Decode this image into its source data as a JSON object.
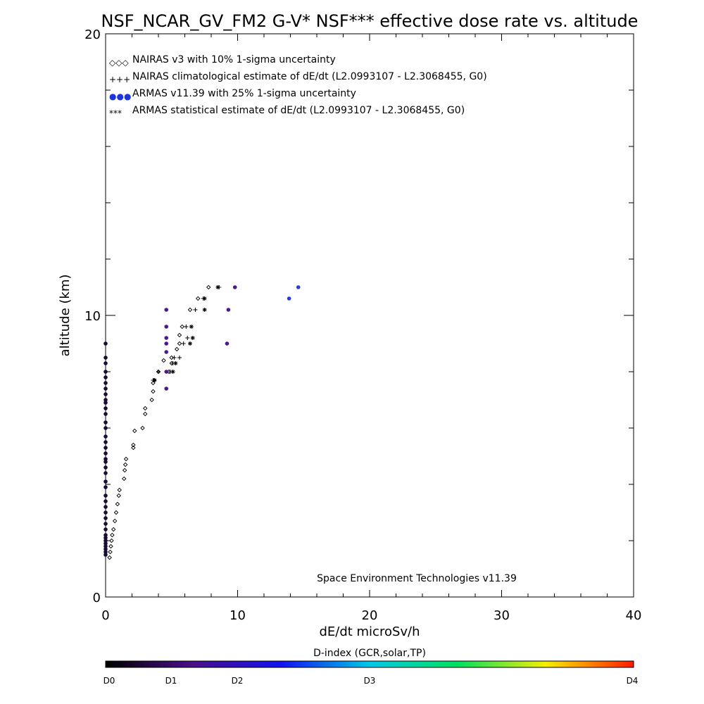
{
  "chart_data": {
    "type": "scatter",
    "title": "NSF_NCAR_GV_FM2 G-V* NSF*** effective dose rate vs. altitude",
    "xlabel": "dE/dt microSv/h",
    "ylabel": "altitude (km)",
    "xlim": [
      0,
      40
    ],
    "ylim": [
      0,
      20
    ],
    "x_ticks": [
      "0",
      "10",
      "20",
      "30",
      "40"
    ],
    "y_ticks": [
      "0",
      "10",
      "20"
    ],
    "grid": false,
    "legend_position": "top-left",
    "annotation": "Space Environment Technologies v11.39",
    "series": [
      {
        "name": "NAIRAS v3 with 10% 1-sigma uncertainty",
        "legend_symbol": "◇◇◇",
        "marker": "diamond",
        "points": [
          [
            0.3,
            1.4
          ],
          [
            0.35,
            1.6
          ],
          [
            0.4,
            1.8
          ],
          [
            0.45,
            2.0
          ],
          [
            0.5,
            2.2
          ],
          [
            0.6,
            2.4
          ],
          [
            0.7,
            2.7
          ],
          [
            0.8,
            3.0
          ],
          [
            0.9,
            3.3
          ],
          [
            1.0,
            3.6
          ],
          [
            1.05,
            3.8
          ],
          [
            1.4,
            4.2
          ],
          [
            1.45,
            4.5
          ],
          [
            1.5,
            4.7
          ],
          [
            1.55,
            4.9
          ],
          [
            2.1,
            5.3
          ],
          [
            2.1,
            5.4
          ],
          [
            2.2,
            5.9
          ],
          [
            2.8,
            6.0
          ],
          [
            3.0,
            6.5
          ],
          [
            3.0,
            6.7
          ],
          [
            3.5,
            7.0
          ],
          [
            3.6,
            7.3
          ],
          [
            3.6,
            7.6
          ],
          [
            3.7,
            7.7
          ],
          [
            4.0,
            8.0
          ],
          [
            4.4,
            8.4
          ],
          [
            4.8,
            8.0
          ],
          [
            5.0,
            8.3
          ],
          [
            5.0,
            8.5
          ],
          [
            5.4,
            8.8
          ],
          [
            5.6,
            9.0
          ],
          [
            5.6,
            9.3
          ],
          [
            5.8,
            9.6
          ],
          [
            6.4,
            10.2
          ],
          [
            7.0,
            10.6
          ],
          [
            7.8,
            11.0
          ]
        ]
      },
      {
        "name": "NAIRAS climatological estimate of dE/dt (L2.0993107 - L2.3068455, G0)",
        "legend_symbol": "+++",
        "marker": "plus",
        "points": [
          [
            3.6,
            7.7
          ],
          [
            4.0,
            8.0
          ],
          [
            4.9,
            8.0
          ],
          [
            5.1,
            8.3
          ],
          [
            5.2,
            8.5
          ],
          [
            5.6,
            8.5
          ],
          [
            5.9,
            9.0
          ],
          [
            6.2,
            9.2
          ],
          [
            6.4,
            9.0
          ],
          [
            6.1,
            9.6
          ],
          [
            6.8,
            10.2
          ],
          [
            7.4,
            10.6
          ],
          [
            8.6,
            11.0
          ]
        ]
      },
      {
        "name": "ARMAS v11.39 with 25% 1-sigma uncertainty",
        "legend_symbol": "●●●",
        "marker": "dot",
        "legend_color": "#1c34d8",
        "points": [
          [
            0,
            1.5
          ],
          [
            0,
            1.6
          ],
          [
            0,
            1.7
          ],
          [
            0,
            1.8
          ],
          [
            0,
            1.9
          ],
          [
            0,
            2.0
          ],
          [
            0,
            2.1
          ],
          [
            0,
            2.2
          ],
          [
            0,
            2.4
          ],
          [
            0,
            2.6
          ],
          [
            0,
            2.8
          ],
          [
            0,
            3.0
          ],
          [
            0,
            3.2
          ],
          [
            0,
            3.4
          ],
          [
            0,
            3.6
          ],
          [
            0,
            3.9
          ],
          [
            0,
            4.1
          ],
          [
            0,
            4.4
          ],
          [
            0,
            4.6
          ],
          [
            0,
            4.8
          ],
          [
            0,
            4.9
          ],
          [
            0,
            5.1
          ],
          [
            0,
            5.3
          ],
          [
            0,
            5.5
          ],
          [
            0,
            5.7
          ],
          [
            0,
            6.0
          ],
          [
            0,
            6.2
          ],
          [
            0,
            6.5
          ],
          [
            0,
            6.7
          ],
          [
            0,
            6.9
          ],
          [
            0,
            7.0
          ],
          [
            0,
            7.2
          ],
          [
            0,
            7.4
          ],
          [
            0,
            7.6
          ],
          [
            0,
            7.8
          ],
          [
            0,
            8.0
          ],
          [
            0,
            8.3
          ],
          [
            0,
            8.5
          ],
          [
            0,
            9.0
          ],
          [
            4.6,
            7.4
          ],
          [
            4.6,
            8.0
          ],
          [
            4.6,
            8.7
          ],
          [
            4.6,
            9.0
          ],
          [
            4.6,
            9.2
          ],
          [
            4.6,
            9.6
          ],
          [
            4.6,
            10.2
          ],
          [
            9.2,
            9.0
          ],
          [
            9.3,
            10.2
          ],
          [
            9.8,
            11.0
          ],
          [
            13.9,
            10.6
          ],
          [
            14.6,
            11.0
          ]
        ]
      },
      {
        "name": "ARMAS statistical estimate of dE/dt (L2.0993107 - L2.3068455, G0)",
        "legend_symbol": "***",
        "marker": "asterisk",
        "points": [
          [
            3.7,
            7.7
          ],
          [
            5.1,
            8.0
          ],
          [
            5.3,
            8.3
          ],
          [
            6.4,
            9.0
          ],
          [
            6.6,
            9.2
          ],
          [
            6.5,
            9.6
          ],
          [
            7.5,
            10.2
          ],
          [
            7.5,
            10.6
          ],
          [
            8.5,
            11.0
          ]
        ]
      }
    ],
    "colorbar": {
      "title": "D-index (GCR,solar,TP)",
      "range": [
        0,
        4
      ],
      "labels": [
        {
          "text": "D0",
          "value": 0
        },
        {
          "text": "D1",
          "value": 1
        },
        {
          "text": "D2",
          "value": 2
        },
        {
          "text": "D3",
          "value": 3
        },
        {
          "text": "D4",
          "value": 4
        }
      ],
      "colors": [
        "#000000",
        "#4a0f8a",
        "#1414f0",
        "#00c8e6",
        "#00e060",
        "#f5f000",
        "#ff1a00"
      ]
    },
    "dot_colors": {
      "low": "#1a0d33",
      "mid": "#4a1a8c",
      "high": "#2a3cd8"
    }
  }
}
